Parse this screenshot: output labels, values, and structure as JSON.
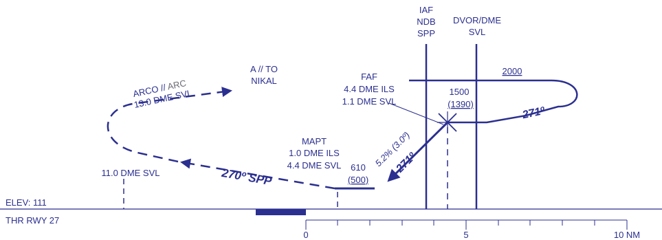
{
  "diagram": {
    "colors": {
      "primary": "#2b2f8f",
      "secondary": "#6a6a73"
    },
    "fixes": {
      "iaf": [
        "IAF",
        "NDB",
        "SPP"
      ],
      "dvor": [
        "DVOR/DME",
        "SVL"
      ],
      "faf": [
        "FAF",
        "4.4 DME ILS",
        "1.1 DME SVL"
      ],
      "mapt": [
        "MAPT",
        "1.0 DME ILS",
        "4.4 DME SVL"
      ],
      "arco_line1_a": "ARCO // ",
      "arco_line1_b": "ARC",
      "arco_line2": "13.0 DME SVL",
      "to_line1": "A // TO",
      "to_line2": "NIKAL",
      "dme11": "11.0 DME SVL"
    },
    "altitudes": {
      "hold": "2000",
      "faf_alt": "1500",
      "faf_height": "(1390)",
      "mapt_alt": "610",
      "mapt_height": "(500)"
    },
    "courses": {
      "inbound_hold": "271º",
      "final": "271º",
      "missed": "270º SPP",
      "gradient": "5.2% (3.0º)"
    },
    "runway": {
      "elevation": "ELEV: 111",
      "threshold": "THR RWY 27"
    },
    "scale": {
      "ticks": [
        "0",
        "5",
        "10 NM"
      ]
    }
  }
}
